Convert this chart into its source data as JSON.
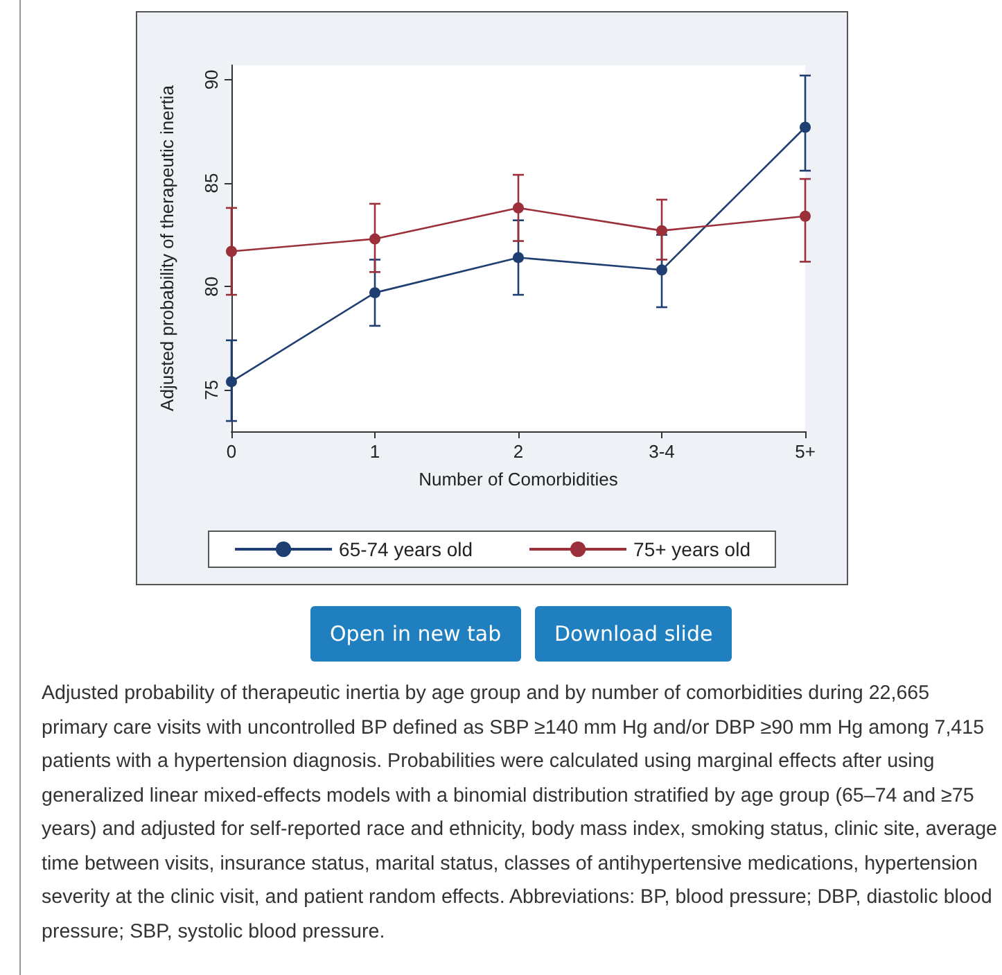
{
  "chart_data": {
    "type": "line",
    "xlabel": "Number of Comorbidities",
    "ylabel": "Adjusted probability of therapeutic inertia",
    "categories": [
      "0",
      "1",
      "2",
      "3-4",
      "5+"
    ],
    "series": [
      {
        "name": "65-74 years old",
        "color": "#1f3f73",
        "values": [
          75.4,
          79.7,
          81.4,
          80.8,
          87.7
        ],
        "errors": [
          [
            73.5,
            77.4
          ],
          [
            78.1,
            81.3
          ],
          [
            79.6,
            83.2
          ],
          [
            79.0,
            82.5
          ],
          [
            85.6,
            90.2
          ]
        ]
      },
      {
        "name": "75+ years old",
        "color": "#9b2f3a",
        "values": [
          81.7,
          82.3,
          83.8,
          82.7,
          83.4
        ],
        "errors": [
          [
            79.6,
            83.8
          ],
          [
            80.7,
            84.0
          ],
          [
            82.2,
            85.4
          ],
          [
            81.3,
            84.2
          ],
          [
            81.2,
            85.2
          ]
        ]
      }
    ],
    "ylim": [
      73,
      90.7
    ],
    "yticks": [
      75,
      80,
      85,
      90
    ],
    "grid": false,
    "legend": "bottom",
    "marker": "circle",
    "line_style": "solid",
    "annotations": [
      "Open in new tab",
      "Download slide",
      "Adjusted probability of therapeutic inertia by age group and by number of comorbidities during 22,665 primary care visits with uncontrolled BP defined as SBP ≥140 mm Hg and/or DBP ≥90 mm Hg among 7,415 patients with a hypertension diagnosis. Probabilities were calculated using marginal effects after using generalized linear mixed-effects models with a binomial distribution stratified by age group (65–74 and ≥75 years) and adjusted for self-reported race and ethnicity, body mass index, smoking status, clinic site, average time between visits, insurance status, marital status, classes of antihypertensive medications, hypertension severity at the clinic visit, and patient random effects. Abbreviations: BP, blood pressure; DBP, diastolic blood pressure; SBP, systolic blood pressure."
    ]
  }
}
